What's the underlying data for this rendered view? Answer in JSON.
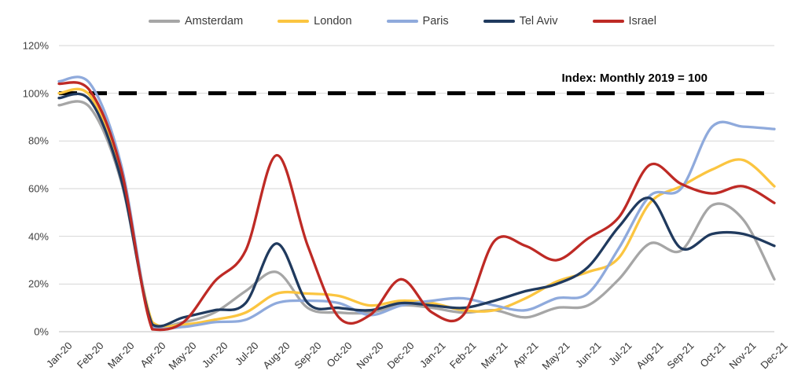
{
  "chart_data": {
    "type": "line",
    "smoothed": true,
    "legend_position": "top",
    "grid": true,
    "ylim": [
      0,
      120
    ],
    "y_tick_labels": [
      "0%",
      "20%",
      "40%",
      "60%",
      "80%",
      "100%",
      "120%"
    ],
    "x_categories": [
      "Jan-20",
      "Feb-20",
      "Mar-20",
      "Apr-20",
      "May-20",
      "Jun-20",
      "Jul-20",
      "Aug-20",
      "Sep-20",
      "Oct-20",
      "Nov-20",
      "Dec-20",
      "Jan-21",
      "Feb-21",
      "Mar-21",
      "Apr-21",
      "May-21",
      "Jun-21",
      "Jul-21",
      "Aug-21",
      "Sep-21",
      "Oct-21",
      "Nov-21",
      "Dec-21"
    ],
    "reference_line": {
      "value": 100,
      "style": "dashed",
      "color": "#000000",
      "label": "Index: Monthly 2019 = 100"
    },
    "series": [
      {
        "name": "Amsterdam",
        "color": "#A6A6A6",
        "values": [
          95,
          94,
          63,
          3,
          4,
          8,
          17,
          25,
          10,
          8,
          8,
          11,
          10,
          8,
          9,
          6,
          10,
          11,
          22,
          37,
          34,
          53,
          47,
          22
        ]
      },
      {
        "name": "London",
        "color": "#FBC540",
        "values": [
          100,
          99,
          66,
          4,
          3,
          5,
          8,
          16,
          16,
          15,
          11,
          13,
          12,
          9,
          9,
          14,
          21,
          25,
          31,
          54,
          61,
          68,
          72,
          61
        ]
      },
      {
        "name": "Paris",
        "color": "#8FAADC",
        "values": [
          105,
          104,
          70,
          2,
          2,
          4,
          5,
          12,
          13,
          12,
          7,
          11,
          13,
          14,
          11,
          9,
          14,
          16,
          35,
          57,
          60,
          86,
          86,
          85
        ]
      },
      {
        "name": "Tel Aviv",
        "color": "#203A5E",
        "values": [
          98,
          97,
          64,
          3,
          6,
          9,
          12,
          37,
          12,
          10,
          9,
          12,
          11,
          10,
          13,
          17,
          20,
          27,
          44,
          56,
          35,
          41,
          41,
          36
        ]
      },
      {
        "name": "Israel",
        "color": "#BE2A25",
        "values": [
          104,
          101,
          68,
          1,
          4,
          21,
          34,
          74,
          36,
          6,
          7,
          22,
          8,
          7,
          38,
          36,
          30,
          39,
          48,
          70,
          62,
          58,
          61,
          54
        ]
      }
    ],
    "axis_colors": {
      "gridline": "#D6D6D6",
      "axis_line": "#BFBFBF"
    }
  }
}
